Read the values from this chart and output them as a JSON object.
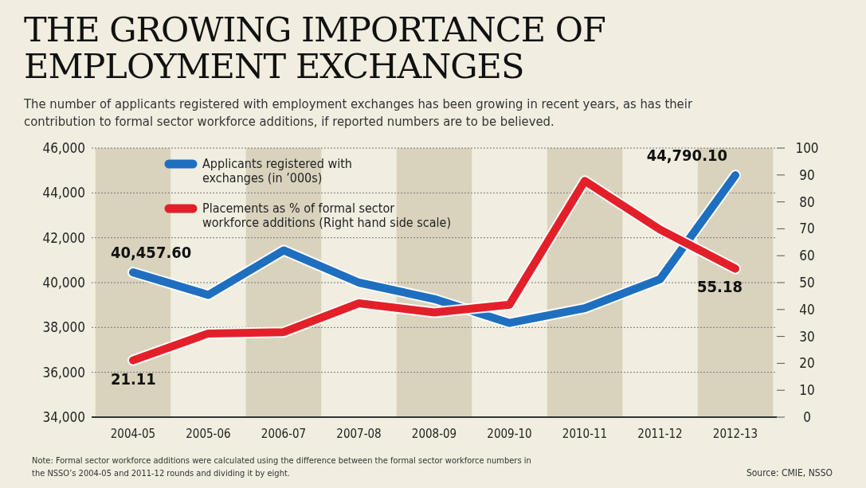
{
  "chart_data": {
    "type": "line",
    "title": "THE GROWING IMPORTANCE OF EMPLOYMENT EXCHANGES",
    "subtitle": "The number of applicants registered with employment exchanges has been growing in recent years, as has their contribution to formal sector workforce additions, if reported numbers are to be believed.",
    "categories": [
      "2004-05",
      "2005-06",
      "2006-07",
      "2007-08",
      "2008-09",
      "2009-10",
      "2010-11",
      "2011-12",
      "2012-13"
    ],
    "series": [
      {
        "name": "Applicants registered with exchanges (in ’000s)",
        "color": "#1f6fc0",
        "values": [
          40457.6,
          39450,
          41440,
          40000,
          39270,
          38200,
          38860,
          40150,
          44790.1
        ],
        "value_labels": [
          "40,457.60",
          null,
          null,
          null,
          null,
          null,
          null,
          null,
          "44,790.10"
        ]
      },
      {
        "name": "Placements as % of formal sector workforce additions  (Right hand side scale)",
        "color": "#e3202a",
        "axis": "y2",
        "values": [
          21.11,
          31.1,
          31.6,
          42.3,
          38.9,
          41.8,
          87.8,
          69.7,
          55.18
        ],
        "value_labels": [
          "21.11",
          null,
          null,
          null,
          null,
          null,
          null,
          null,
          "55.18"
        ]
      }
    ],
    "ylim": [
      34000,
      46000
    ],
    "yticks": [
      {
        "value": 34000,
        "label": "34,000"
      },
      {
        "value": 36000,
        "label": "36,000"
      },
      {
        "value": 38000,
        "label": "38,000"
      },
      {
        "value": 40000,
        "label": "40,000"
      },
      {
        "value": 42000,
        "label": "42,000"
      },
      {
        "value": 44000,
        "label": "44,000"
      },
      {
        "value": 46000,
        "label": "46,000"
      }
    ],
    "y2lim": [
      0,
      100
    ],
    "y2ticks": [
      0,
      10,
      20,
      30,
      40,
      50,
      60,
      70,
      80,
      90,
      100
    ],
    "grid": "y",
    "legend": "top left",
    "marker": "none",
    "line_style": "solid",
    "annotations": [
      "Note: Formal sector workforce additions were calculated using the difference between the formal sector workforce numbers in the NSSO’s 2004-05 and 2011-12 rounds and dividing it by eight.",
      "Source: CMIE, NSSO"
    ]
  }
}
